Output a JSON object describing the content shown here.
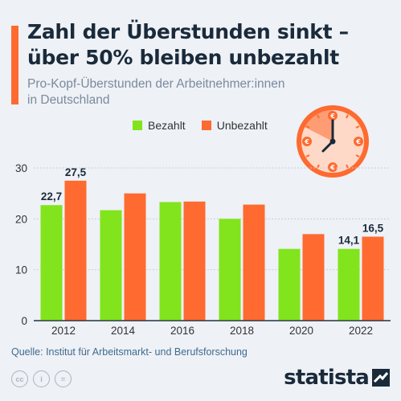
{
  "header": {
    "title_line1": "Zahl der Überstunden sinkt –",
    "title_line2": "über 50% bleiben unbezahlt",
    "subtitle_line1": "Pro-Kopf-Überstunden der Arbeitnehmer:innen",
    "subtitle_line2": "in Deutschland"
  },
  "legend": {
    "paid": "Bezahlt",
    "unpaid": "Unbezahlt"
  },
  "colors": {
    "paid": "#82e41c",
    "unpaid": "#fe6a30",
    "accent": "#fe6a30",
    "text": "#1a2a3a"
  },
  "icons": {
    "clock": "clock-with-euro-icon",
    "cc": "creative-commons-icon",
    "by": "attribution-icon",
    "nd": "no-derivatives-icon"
  },
  "footer": {
    "source": "Quelle: Institut für Arbeitsmarkt- und Berufsforschung",
    "logo": "statista",
    "cc_labels": [
      "cc",
      "i",
      "="
    ]
  },
  "chart_data": {
    "type": "bar",
    "categories": [
      "2012",
      "2014",
      "2016",
      "2018",
      "2020",
      "2022"
    ],
    "series": [
      {
        "name": "Bezahlt",
        "values": [
          22.7,
          21.7,
          23.3,
          20.0,
          14.1,
          14.1
        ]
      },
      {
        "name": "Unbezahlt",
        "values": [
          27.5,
          25.0,
          23.4,
          22.8,
          17.0,
          16.5
        ]
      }
    ],
    "data_labels": [
      {
        "series": 0,
        "index": 0,
        "text": "22,7"
      },
      {
        "series": 1,
        "index": 0,
        "text": "27,5"
      },
      {
        "series": 0,
        "index": 5,
        "text": "14,1"
      },
      {
        "series": 1,
        "index": 5,
        "text": "16,5"
      }
    ],
    "yticks": [
      "0",
      "10",
      "20",
      "30"
    ],
    "ylim": [
      0,
      30
    ],
    "grid": true
  }
}
